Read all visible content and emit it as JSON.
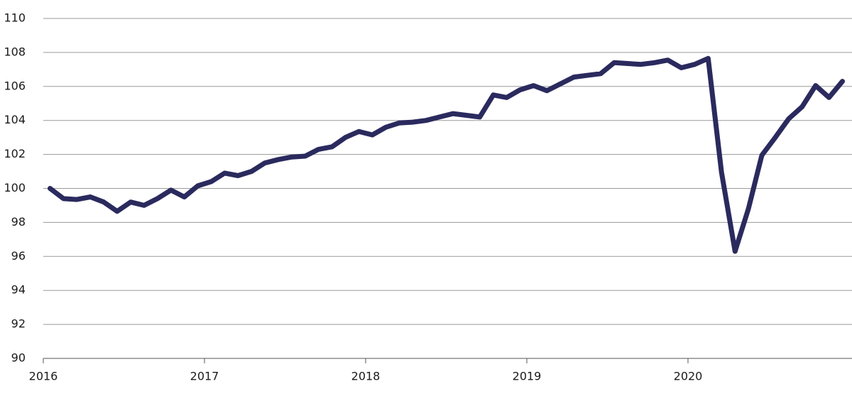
{
  "chart_data": {
    "type": "line",
    "color": "#2b2a5e",
    "grid": true,
    "xlim": [
      2016,
      2021
    ],
    "xticks": [
      2016,
      2017,
      2018,
      2019,
      2020
    ],
    "ylim": [
      90,
      110
    ],
    "yticks": [
      90,
      92,
      94,
      96,
      98,
      100,
      102,
      104,
      106,
      108,
      110
    ],
    "x": [
      2016.042,
      2016.125,
      2016.208,
      2016.292,
      2016.375,
      2016.458,
      2016.542,
      2016.625,
      2016.708,
      2016.792,
      2016.875,
      2016.958,
      2017.042,
      2017.125,
      2017.208,
      2017.292,
      2017.375,
      2017.458,
      2017.542,
      2017.625,
      2017.708,
      2017.792,
      2017.875,
      2017.958,
      2018.042,
      2018.125,
      2018.208,
      2018.292,
      2018.375,
      2018.458,
      2018.542,
      2018.625,
      2018.708,
      2018.792,
      2018.875,
      2018.958,
      2019.042,
      2019.125,
      2019.208,
      2019.292,
      2019.375,
      2019.458,
      2019.542,
      2019.625,
      2019.708,
      2019.792,
      2019.875,
      2019.958,
      2020.042,
      2020.125,
      2020.208,
      2020.292,
      2020.375,
      2020.458,
      2020.542,
      2020.625,
      2020.708,
      2020.792,
      2020.875,
      2020.958
    ],
    "values": [
      100.0,
      99.4,
      99.35,
      99.5,
      99.2,
      98.65,
      99.2,
      99.0,
      99.4,
      99.9,
      99.5,
      100.15,
      100.4,
      100.9,
      100.75,
      101.0,
      101.5,
      101.7,
      101.85,
      101.9,
      102.3,
      102.45,
      103.0,
      103.35,
      103.15,
      103.6,
      103.85,
      103.9,
      104.0,
      104.2,
      104.4,
      104.3,
      104.2,
      105.5,
      105.35,
      105.8,
      106.05,
      105.75,
      106.15,
      106.55,
      106.65,
      106.75,
      107.4,
      107.35,
      107.3,
      107.4,
      107.55,
      107.1,
      107.3,
      107.65,
      100.95,
      96.3,
      98.8,
      101.95,
      103.0,
      104.1,
      104.8,
      106.05,
      105.35,
      106.3
    ]
  }
}
